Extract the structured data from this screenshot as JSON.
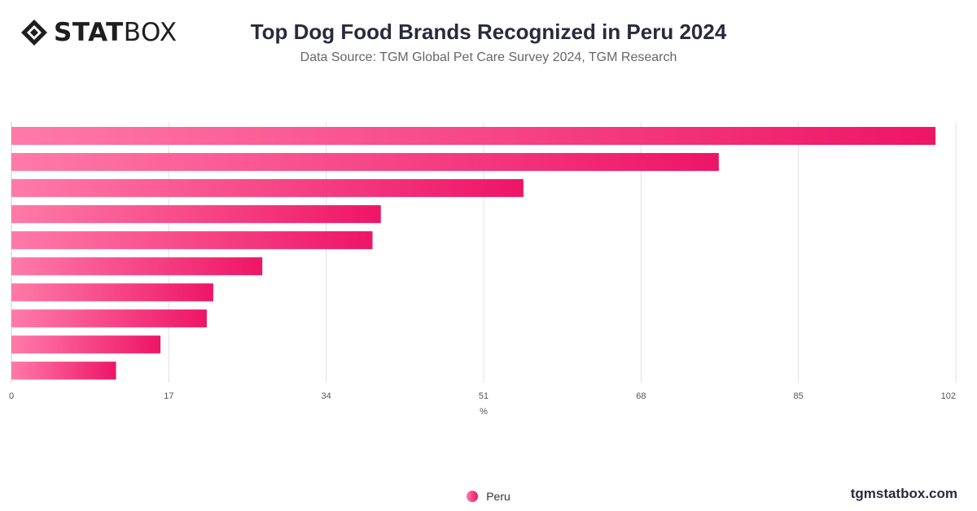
{
  "header": {
    "logo_bold": "STAT",
    "logo_light": "BOX",
    "title": "Top Dog Food Brands Recognized in Peru 2024",
    "subtitle": "Data Source: TGM Global Pet Care Survey 2024, TGM Research"
  },
  "footer": {
    "site": "tgmstatbox.com"
  },
  "legend": {
    "label": "Peru"
  },
  "chart_data": {
    "type": "bar",
    "orientation": "horizontal",
    "title": "Top Dog Food Brands Recognized in Peru 2024",
    "xlabel": "%",
    "ylabel": "",
    "xlim": [
      0,
      102
    ],
    "ticks": [
      0,
      17,
      34,
      51,
      68,
      85,
      102
    ],
    "grid": true,
    "legend_position": "bottom",
    "categories": [
      "",
      "",
      "",
      "",
      "",
      "",
      "",
      "",
      "",
      ""
    ],
    "series": [
      {
        "name": "Peru",
        "values": [
          99.8,
          76.4,
          55.3,
          39.9,
          39.0,
          27.1,
          21.8,
          21.1,
          16.1,
          11.3
        ]
      }
    ],
    "colors": {
      "bar_start": "#ff7aa8",
      "bar_end": "#ee1566",
      "grid": "#e0e0e0",
      "axis": "#cccccc",
      "tick_text": "#555555"
    }
  }
}
